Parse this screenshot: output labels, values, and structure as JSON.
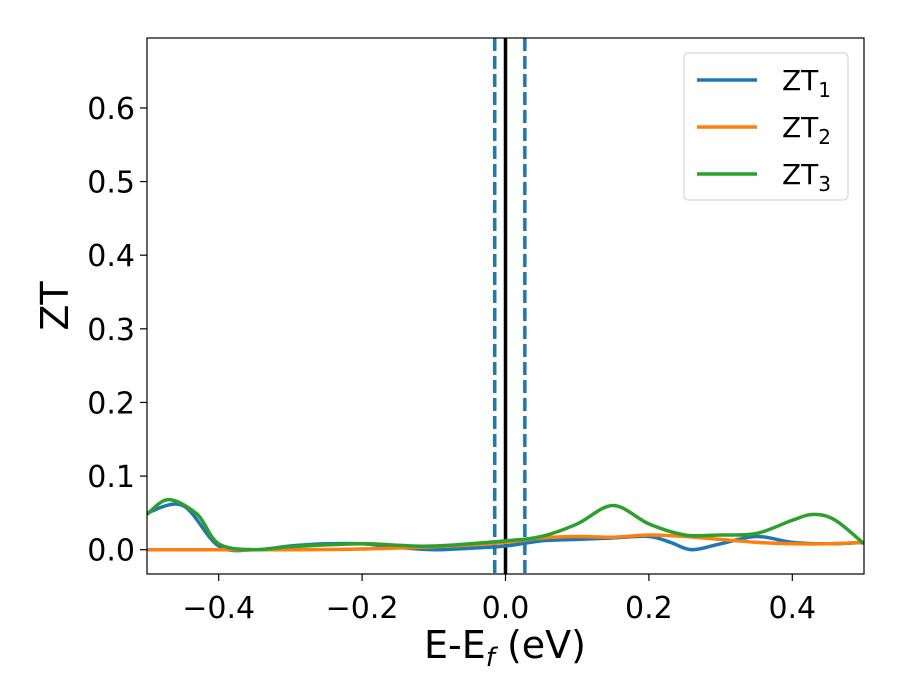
{
  "chart_data": {
    "type": "line",
    "xlabel": "E-E",
    "xlabel_sub": "f",
    "xlabel_unit": " (eV)",
    "ylabel": "ZT",
    "xlim": [
      -0.5,
      0.5
    ],
    "ylim": [
      -0.033,
      0.695
    ],
    "x_ticks": [
      -0.4,
      -0.2,
      0.0,
      0.2,
      0.4
    ],
    "x_tick_labels": [
      "−0.4",
      "−0.2",
      "0.0",
      "0.2",
      "0.4"
    ],
    "y_ticks": [
      0.0,
      0.1,
      0.2,
      0.3,
      0.4,
      0.5,
      0.6
    ],
    "y_tick_labels": [
      "0.0",
      "0.1",
      "0.2",
      "0.3",
      "0.4",
      "0.5",
      "0.6"
    ],
    "grid": false,
    "legend_position": "top-right",
    "vertical_lines": [
      {
        "x": 0.0,
        "style": "solid",
        "color": "#000000"
      },
      {
        "x": -0.015,
        "style": "dashed",
        "color": "#1f77b4"
      },
      {
        "x": 0.027,
        "style": "dashed",
        "color": "#1f77b4"
      }
    ],
    "series": [
      {
        "name": "ZT",
        "subscript": "1",
        "color": "#1f77b4",
        "x": [
          -0.5,
          -0.45,
          -0.4,
          -0.35,
          -0.3,
          -0.25,
          -0.2,
          -0.15,
          -0.1,
          -0.05,
          0.0,
          0.05,
          0.1,
          0.15,
          0.2,
          0.23,
          0.26,
          0.3,
          0.35,
          0.4,
          0.45,
          0.5
        ],
        "y": [
          0.05,
          0.06,
          0.005,
          0.0,
          0.005,
          0.008,
          0.008,
          0.003,
          0.0,
          0.002,
          0.005,
          0.012,
          0.014,
          0.016,
          0.018,
          0.01,
          0.0,
          0.008,
          0.018,
          0.01,
          0.008,
          0.01
        ]
      },
      {
        "name": "ZT",
        "subscript": "2",
        "color": "#ff7f0e",
        "x": [
          -0.5,
          -0.4,
          -0.3,
          -0.2,
          -0.1,
          0.0,
          0.05,
          0.1,
          0.15,
          0.2,
          0.25,
          0.3,
          0.35,
          0.4,
          0.45,
          0.5
        ],
        "y": [
          0.0,
          0.0,
          0.0,
          0.001,
          0.004,
          0.01,
          0.016,
          0.018,
          0.017,
          0.02,
          0.018,
          0.014,
          0.01,
          0.008,
          0.008,
          0.01
        ]
      },
      {
        "name": "ZT",
        "subscript": "3",
        "color": "#2ca02c",
        "x": [
          -0.5,
          -0.47,
          -0.43,
          -0.4,
          -0.35,
          -0.3,
          -0.2,
          -0.15,
          -0.1,
          0.0,
          0.05,
          0.1,
          0.15,
          0.2,
          0.25,
          0.3,
          0.35,
          0.4,
          0.43,
          0.46,
          0.5
        ],
        "y": [
          0.048,
          0.068,
          0.048,
          0.008,
          0.0,
          0.004,
          0.008,
          0.006,
          0.005,
          0.012,
          0.018,
          0.035,
          0.06,
          0.035,
          0.02,
          0.02,
          0.022,
          0.04,
          0.048,
          0.04,
          0.008
        ]
      }
    ]
  }
}
